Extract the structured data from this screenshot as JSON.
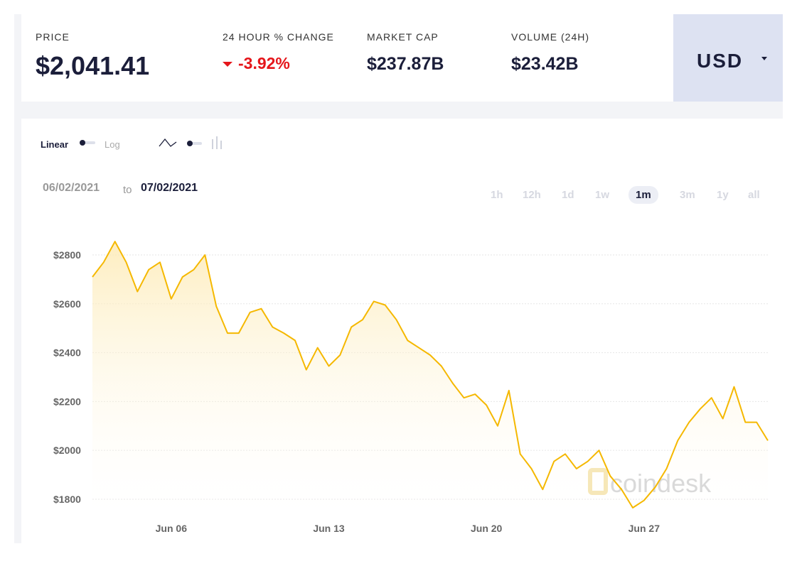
{
  "header": {
    "stats": [
      {
        "label": "PRICE",
        "value": "$2,041.41"
      },
      {
        "label": "24 HOUR % CHANGE",
        "value": "-3.92%"
      },
      {
        "label": "MARKET CAP",
        "value": "$237.87B"
      },
      {
        "label": "VOLUME (24H)",
        "value": "$23.42B"
      }
    ],
    "currency": "USD"
  },
  "controls": {
    "scale_options": [
      "Linear",
      "Log"
    ],
    "date_from": "06/02/2021",
    "date_sep": "to",
    "date_to": "07/02/2021",
    "ranges": [
      "1h",
      "12h",
      "1d",
      "1w",
      "1m",
      "3m",
      "1y",
      "all"
    ],
    "selected_range": "1m"
  },
  "watermark": "coindesk",
  "chart_data": {
    "type": "line",
    "categories": [
      null,
      null,
      null,
      null,
      null,
      null,
      null,
      "Jun 06",
      null,
      null,
      null,
      null,
      null,
      null,
      null,
      null,
      null,
      null,
      null,
      null,
      null,
      "Jun 13",
      null,
      null,
      null,
      null,
      null,
      null,
      null,
      null,
      null,
      null,
      null,
      null,
      null,
      "Jun 20",
      null,
      null,
      null,
      null,
      null,
      null,
      null,
      null,
      null,
      null,
      null,
      null,
      null,
      "Jun 27",
      null,
      null,
      null,
      null,
      null,
      null,
      null,
      null,
      null,
      null,
      null
    ],
    "series": [
      {
        "color": "#f5b800",
        "values": [
          2710,
          2770,
          2855,
          2770,
          2650,
          2740,
          2770,
          2620,
          2710,
          2740,
          2800,
          2590,
          2480,
          2480,
          2565,
          2580,
          2505,
          2480,
          2450,
          2330,
          2420,
          2345,
          2390,
          2505,
          2535,
          2610,
          2595,
          2535,
          2450,
          2420,
          2390,
          2345,
          2275,
          2215,
          2230,
          2185,
          2100,
          2245,
          1985,
          1925,
          1840,
          1955,
          1985,
          1925,
          1955,
          2000,
          1895,
          1840,
          1765,
          1795,
          1850,
          1925,
          2040,
          2115,
          2170,
          2215,
          2130,
          2260,
          2115,
          2115,
          2040
        ]
      }
    ],
    "ylim": [
      1690,
      2880
    ],
    "yticks": [
      {
        "value": 1800,
        "label": "$1800"
      },
      {
        "value": 2000,
        "label": "$2000"
      },
      {
        "value": 2200,
        "label": "$2200"
      },
      {
        "value": 2400,
        "label": "$2400"
      },
      {
        "value": 2600,
        "label": "$2600"
      },
      {
        "value": 2800,
        "label": "$2800"
      }
    ],
    "grid": true
  }
}
